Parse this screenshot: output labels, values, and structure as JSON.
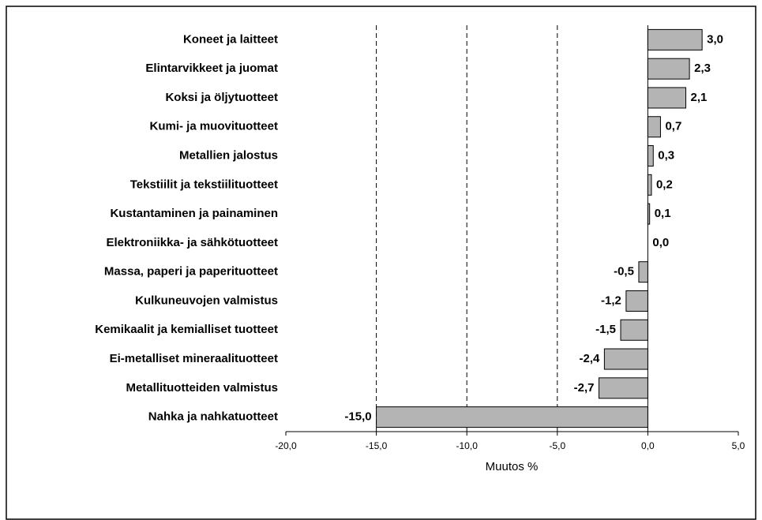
{
  "chart_data": {
    "type": "barh",
    "categories": [
      "Koneet ja laitteet",
      "Elintarvikkeet ja juomat",
      "Koksi ja öljytuotteet",
      "Kumi- ja muovituotteet",
      "Metallien jalostus",
      "Tekstiilit ja tekstiilituotteet",
      "Kustantaminen ja painaminen",
      "Elektroniikka- ja sähkötuotteet",
      "Massa, paperi ja paperituotteet",
      "Kulkuneuvojen valmistus",
      "Kemikaalit ja kemialliset tuotteet",
      "Ei-metalliset mineraalituotteet",
      "Metallituotteiden valmistus",
      "Nahka ja nahkatuotteet"
    ],
    "values": [
      3.0,
      2.3,
      2.1,
      0.7,
      0.3,
      0.2,
      0.1,
      0.0,
      -0.5,
      -1.2,
      -1.5,
      -2.4,
      -2.7,
      -15.0
    ],
    "value_labels": [
      "3,0",
      "2,3",
      "2,1",
      "0,7",
      "0,3",
      "0,2",
      "0,1",
      "0,0",
      "-0,5",
      "-1,2",
      "-1,5",
      "-2,4",
      "-2,7",
      "-15,0"
    ],
    "color": "#b4b4b4",
    "xlabel": "Muutos %",
    "xlim": [
      -20,
      5
    ],
    "xticks": [
      {
        "value": -20,
        "label": "-20,0"
      },
      {
        "value": -15,
        "label": "-15,0"
      },
      {
        "value": -10,
        "label": "-10,0"
      },
      {
        "value": -5,
        "label": "-5,0"
      },
      {
        "value": 0,
        "label": "0,0"
      },
      {
        "value": 5,
        "label": "5,0"
      }
    ],
    "grid": true
  }
}
